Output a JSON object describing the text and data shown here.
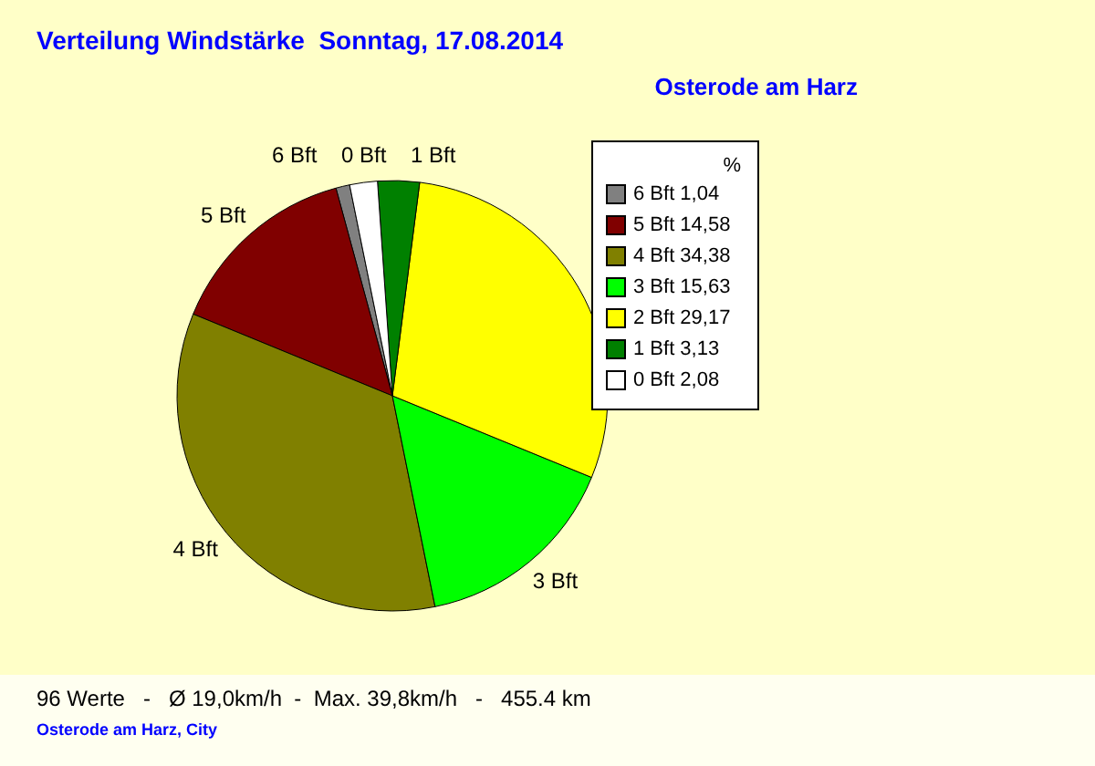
{
  "chart_data": {
    "type": "pie",
    "title": "Verteilung Windstärke  Sonntag, 17.08.2014",
    "subtitle": "Osterode am Harz",
    "categories": [
      "6 Bft",
      "5 Bft",
      "4 Bft",
      "3 Bft",
      "2 Bft",
      "1 Bft",
      "0 Bft"
    ],
    "values": [
      1.04,
      14.58,
      34.38,
      15.63,
      29.17,
      3.13,
      2.08
    ],
    "value_labels": [
      "1,04",
      "14,58",
      "34,38",
      "15,63",
      "29,17",
      "3,13",
      "2,08"
    ],
    "colors": [
      "#808080",
      "#800000",
      "#808000",
      "#00ff00",
      "#ffff00",
      "#008000",
      "#ffffff"
    ],
    "legend_title": "%",
    "legend": "top right",
    "annotations": [
      "96 Werte   -   Ø 19,0km/h  -  Max. 39,8km/h   -   455.4 km",
      "Osterode am Harz, City"
    ]
  }
}
